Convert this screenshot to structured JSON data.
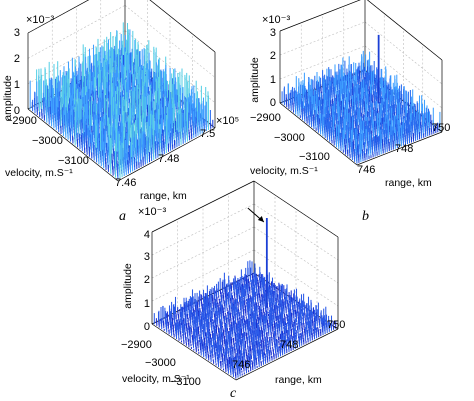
{
  "chart_data": [
    {
      "type": "surface",
      "panel_label": "a",
      "zlabel": "amplitude",
      "xlabel": "velocity, m.S⁻¹",
      "ylabel": "range, km",
      "z_exponent": "×10⁻³",
      "range_exponent": "×10⁵",
      "z_ticks": [
        "0",
        "1",
        "2",
        "3"
      ],
      "velocity_ticks": [
        "−2900",
        "−3000",
        "−3100"
      ],
      "range_ticks": [
        "7.46",
        "7.48",
        "7.5"
      ],
      "zlim": [
        0,
        3
      ],
      "noise_level": 1.15,
      "noise_max": 2.1,
      "peak": null,
      "colors": [
        "#1a3fd6",
        "#2a6cf0",
        "#3fa0ff",
        "#5ad0e6",
        "#9be07a"
      ]
    },
    {
      "type": "surface",
      "panel_label": "b",
      "zlabel": "amplitude",
      "xlabel": "velocity, m.S⁻¹",
      "ylabel": "range, km",
      "z_exponent": "×10⁻³",
      "z_ticks": [
        "0",
        "1",
        "2",
        "3"
      ],
      "velocity_ticks": [
        "−2900",
        "−3000",
        "−3100"
      ],
      "range_ticks": [
        "746",
        "748",
        "750"
      ],
      "zlim": [
        0,
        3
      ],
      "noise_level": 0.75,
      "noise_max": 1.6,
      "peak": {
        "value": 2.85
      },
      "colors": [
        "#1a3fd6",
        "#2a6cf0",
        "#3fa0ff",
        "#5ad0e6"
      ]
    },
    {
      "type": "surface",
      "panel_label": "c",
      "zlabel": "amplitude",
      "xlabel": "velocity, m.S⁻¹",
      "ylabel": "range, km",
      "z_exponent": "×10⁻³",
      "z_ticks": [
        "0",
        "1",
        "2",
        "3",
        "4"
      ],
      "velocity_ticks": [
        "−2900",
        "−3000",
        "−3100"
      ],
      "range_ticks": [
        "746",
        "748",
        "750"
      ],
      "zlim": [
        0,
        4
      ],
      "noise_level": 0.55,
      "noise_max": 1.2,
      "peak": {
        "value": 3.9,
        "arrow": true
      },
      "colors": [
        "#1a2fd0",
        "#2a5ae8",
        "#3b82f6"
      ]
    }
  ]
}
